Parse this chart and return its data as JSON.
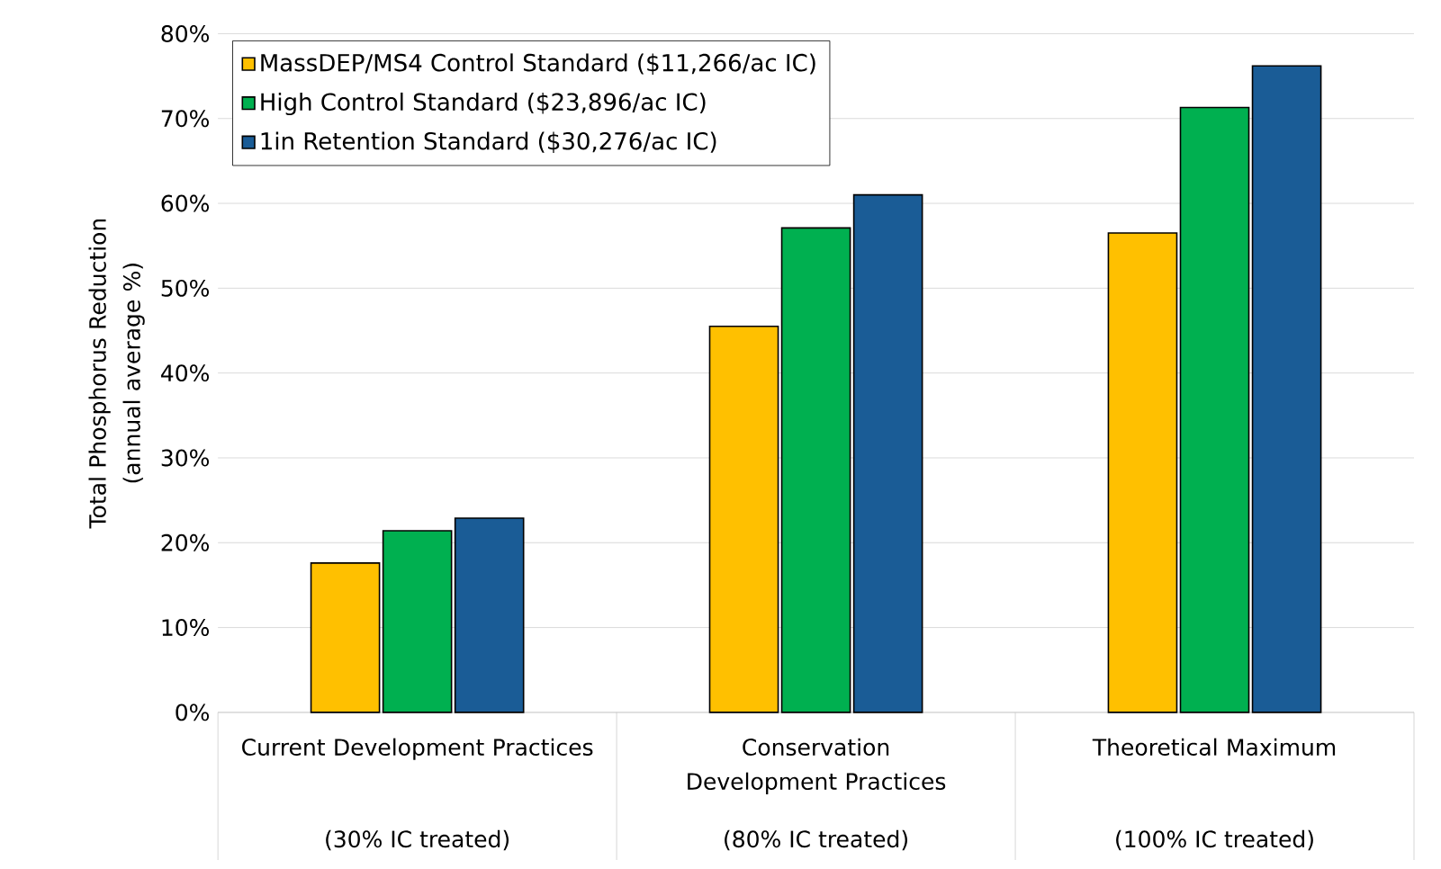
{
  "chart_data": {
    "type": "bar",
    "ylabel": "Total Phosphorus Reduction (annual average %)",
    "categories": [
      "Current Development Practices",
      "Conservation Development Practices",
      "Theoretical Maximum"
    ],
    "annotations": [
      "(30% IC treated)",
      "(80% IC treated)",
      "(100% IC treated)"
    ],
    "series": [
      {
        "name": "MassDEP/MS4 Control Standard ($11,266/ac IC)",
        "color": "#ffc000",
        "values": [
          17.6,
          45.5,
          56.5
        ]
      },
      {
        "name": "High Control Standard ($23,896/ac IC)",
        "color": "#00b050",
        "values": [
          21.4,
          57.1,
          71.3
        ]
      },
      {
        "name": "1in Retention Standard ($30,276/ac IC)",
        "color": "#1a5c96",
        "values": [
          22.9,
          61.0,
          76.2
        ]
      }
    ],
    "ylim": [
      0,
      80
    ],
    "yticks": [
      {
        "value": 0,
        "label": "0%"
      },
      {
        "value": 10,
        "label": "10%"
      },
      {
        "value": 20,
        "label": "20%"
      },
      {
        "value": 30,
        "label": "30%"
      },
      {
        "value": 40,
        "label": "40%"
      },
      {
        "value": 50,
        "label": "50%"
      },
      {
        "value": 60,
        "label": "60%"
      },
      {
        "value": 70,
        "label": "70%"
      },
      {
        "value": 80,
        "label": "80%"
      }
    ],
    "grid": "y",
    "legend": "top left"
  }
}
